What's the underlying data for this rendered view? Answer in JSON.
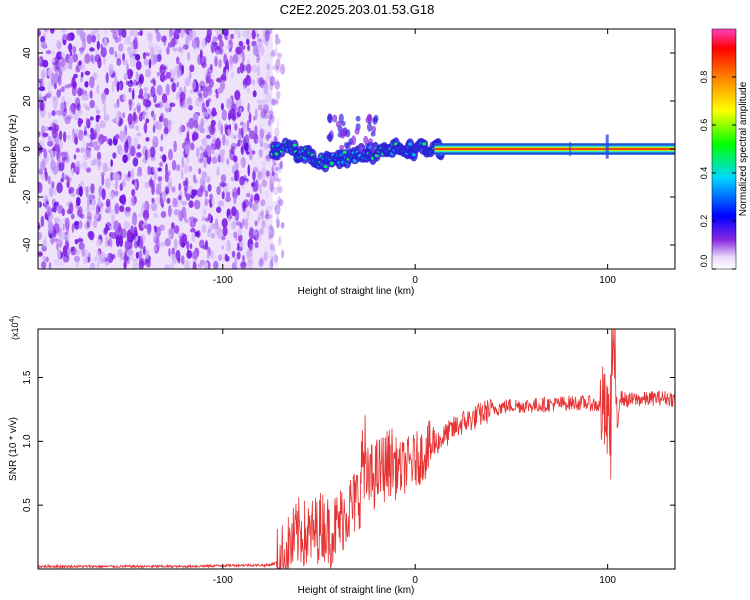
{
  "title": "C2E2.2025.203.01.53.G18",
  "chart_data": [
    {
      "type": "heatmap",
      "xlabel": "Height of straight line (km)",
      "ylabel": "Frequency (Hz)",
      "xlim": [
        -196,
        135
      ],
      "ylim": [
        -50,
        50
      ],
      "xticks": [
        -100,
        0,
        100
      ],
      "yticks": [
        -40,
        -20,
        0,
        20,
        40
      ],
      "noise_region_x": [
        -196,
        -74
      ],
      "signal_track": {
        "x": [
          -74,
          -70,
          -66,
          -62,
          -58,
          -54,
          -50,
          -46,
          -42,
          -38,
          -34,
          -30,
          -26,
          -22,
          -18,
          -14,
          -10,
          -6,
          -2,
          2,
          6,
          10,
          14,
          135
        ],
        "freq": [
          0,
          0.5,
          0,
          -1,
          -2,
          -3,
          -4.5,
          -5,
          -4.5,
          -4,
          -3,
          -2.5,
          -2,
          -1.5,
          -1,
          -0.5,
          0,
          0,
          0,
          0,
          0,
          0,
          0,
          0
        ]
      },
      "strong_band_x": [
        10,
        135
      ],
      "colorbar": {
        "label": "Normalized spectral amplitude",
        "range": [
          0,
          1
        ],
        "ticks": [
          0.0,
          0.2,
          0.4,
          0.6,
          0.8
        ],
        "tick_labels": [
          "0.0",
          "0.2",
          "0.4",
          "0.6",
          "0.8"
        ]
      }
    },
    {
      "type": "line",
      "xlabel": "Height of straight line (km)",
      "ylabel": "SNR (10 * v/v)",
      "y_scale_label": "(x10",
      "y_scale_exp": "4",
      "y_scale_close": ")",
      "xlim": [
        -196,
        135
      ],
      "ylim": [
        0,
        1.88
      ],
      "xticks": [
        -100,
        0,
        100
      ],
      "yticks": [
        0.5,
        1.0,
        1.5
      ],
      "ytick_labels": [
        "0.5",
        "1.0",
        "1.5"
      ],
      "series_color": "#e63232",
      "series": [
        {
          "x": [
            -196,
            -160,
            -120,
            -90,
            -76,
            -72,
            -68,
            -64,
            -60,
            -56,
            -52,
            -48,
            -44,
            -40,
            -36,
            -32,
            -28,
            -24,
            -20,
            -16,
            -12,
            -8,
            -4,
            0,
            4,
            8,
            12,
            16,
            20,
            25,
            30,
            35,
            40,
            45,
            50,
            60,
            70,
            80,
            90,
            95,
            98,
            100,
            102,
            104,
            106,
            110,
            115,
            120,
            125,
            130,
            135
          ],
          "y": [
            0.02,
            0.02,
            0.02,
            0.03,
            0.03,
            0.05,
            0.1,
            0.2,
            0.3,
            0.25,
            0.3,
            0.35,
            0.28,
            0.35,
            0.45,
            0.5,
            0.62,
            0.7,
            0.75,
            0.8,
            0.85,
            0.78,
            0.82,
            0.85,
            0.9,
            0.95,
            1.0,
            1.05,
            1.1,
            1.15,
            1.18,
            1.22,
            1.25,
            1.27,
            1.28,
            1.28,
            1.29,
            1.3,
            1.3,
            1.28,
            1.25,
            1.1,
            1.5,
            1.3,
            1.35,
            1.32,
            1.33,
            1.33,
            1.34,
            1.34,
            1.33
          ]
        }
      ]
    }
  ]
}
